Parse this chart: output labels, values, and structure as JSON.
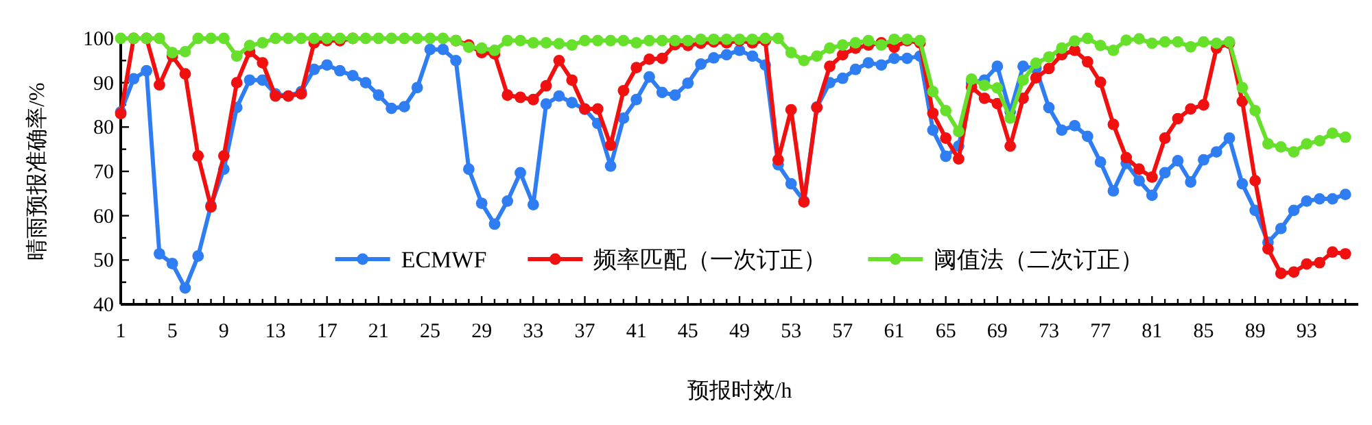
{
  "chart_data": {
    "type": "line",
    "xlabel": "预报时效/h",
    "ylabel": "晴雨预报准确率/%",
    "x": [
      1,
      2,
      3,
      4,
      5,
      6,
      7,
      8,
      9,
      10,
      11,
      12,
      13,
      14,
      15,
      16,
      17,
      18,
      19,
      20,
      21,
      22,
      23,
      24,
      25,
      26,
      27,
      28,
      29,
      30,
      31,
      32,
      33,
      34,
      35,
      36,
      37,
      38,
      39,
      40,
      41,
      42,
      43,
      44,
      45,
      46,
      47,
      48,
      49,
      50,
      51,
      52,
      53,
      54,
      55,
      56,
      57,
      58,
      59,
      60,
      61,
      62,
      63,
      64,
      65,
      66,
      67,
      68,
      69,
      70,
      71,
      72,
      73,
      74,
      75,
      76,
      77,
      78,
      79,
      80,
      81,
      82,
      83,
      84,
      85,
      86,
      87,
      88,
      89,
      90,
      91,
      92,
      93,
      94,
      95,
      96
    ],
    "series": [
      {
        "name": "ECMWF",
        "color": "#2f7df2",
        "values": [
          83.4,
          90.9,
          92.7,
          51.4,
          49.2,
          43.7,
          50.9,
          62.3,
          70.5,
          84.4,
          90.6,
          90.6,
          87.5,
          87,
          88,
          93,
          94,
          92.7,
          91.6,
          90,
          87.2,
          84.2,
          84.6,
          88.9,
          97.5,
          97.5,
          95,
          70.5,
          62.8,
          58.1,
          63.3,
          69.7,
          62.5,
          85.2,
          87,
          85.5,
          84,
          80.8,
          71.2,
          82,
          86.2,
          91.3,
          87.8,
          87.2,
          89.9,
          94.2,
          95.6,
          96.3,
          97.3,
          96,
          94,
          71.5,
          67.2,
          63.3,
          84.5,
          90,
          91,
          93,
          94.5,
          94,
          95.5,
          95.5,
          96,
          79.3,
          73.4,
          75.7,
          90,
          90.6,
          93.7,
          83.4,
          93.7,
          93.2,
          84.4,
          79.3,
          80.3,
          77.9,
          72.1,
          65.6,
          71.8,
          67.9,
          64.6,
          69.7,
          72.4,
          67.6,
          72.6,
          74.4,
          77.5,
          67.2,
          61.2,
          54,
          57.1,
          61.2,
          63.3,
          63.8,
          63.8,
          64.8
        ]
      },
      {
        "name": "频率匹配（一次订正）",
        "color": "#f01010",
        "values": [
          83,
          100,
          100,
          89.5,
          96,
          92,
          73.5,
          62,
          73.5,
          90,
          97,
          94.5,
          87,
          87,
          87.5,
          99,
          99.5,
          99.5,
          100,
          null,
          null,
          null,
          null,
          null,
          null,
          null,
          99.5,
          98.5,
          96.8,
          96.5,
          87.2,
          86.7,
          86.2,
          89.3,
          95,
          90.6,
          84.1,
          84.1,
          75.9,
          88.2,
          93.4,
          95.3,
          95.5,
          98.6,
          98.4,
          98.9,
          99.2,
          99,
          99.5,
          99,
          99.5,
          72.6,
          83.9,
          63.1,
          84.4,
          93.7,
          96.3,
          97.8,
          98.5,
          99,
          98,
          99.5,
          99,
          83.1,
          77.5,
          72.8,
          89,
          86.5,
          85.3,
          75.7,
          86.5,
          91.1,
          93.2,
          96.3,
          97.3,
          94.7,
          90.1,
          80.6,
          73.1,
          70.5,
          68.7,
          77.5,
          81.9,
          84.1,
          85,
          97.8,
          98.9,
          85.8,
          67.9,
          52.5,
          47,
          47.3,
          49.1,
          49.4,
          51.8,
          51.4
        ]
      },
      {
        "name": "阈值法（二次订正）",
        "color": "#66e02a",
        "values": [
          100,
          100,
          100,
          100,
          96.8,
          97,
          100,
          100,
          100,
          96,
          98.4,
          99,
          100,
          100,
          100,
          100,
          100,
          100,
          100,
          100,
          100,
          100,
          100,
          100,
          100,
          100,
          99.5,
          98,
          97.8,
          97.3,
          99.5,
          99.5,
          99,
          99,
          98.8,
          98.5,
          99.5,
          99.5,
          99.5,
          99.5,
          99,
          99.5,
          99.5,
          99.5,
          99.5,
          99.8,
          99.8,
          99.8,
          99.8,
          99.8,
          100,
          100,
          96.8,
          95,
          96,
          97.8,
          98.5,
          99,
          99.5,
          98.5,
          99.8,
          99.8,
          99.5,
          88,
          83.7,
          79,
          90.8,
          89.4,
          88.8,
          82,
          90.6,
          94.4,
          95.8,
          97.8,
          99.4,
          100,
          98.4,
          97.3,
          99.6,
          99.9,
          98.9,
          99.2,
          99.2,
          98.1,
          99.2,
          98.9,
          99.2,
          88.9,
          83.7,
          76.2,
          75.5,
          74.4,
          76.2,
          76.9,
          78.6,
          77.7
        ]
      }
    ],
    "xlim": [
      1,
      97
    ],
    "xticks": [
      1,
      {
        "value": 2,
        "label": null
      },
      {
        "value": 3,
        "label": null
      },
      {
        "value": 4,
        "label": null
      },
      5,
      {
        "value": 6,
        "label": null
      },
      {
        "value": 7,
        "label": null
      },
      {
        "value": 8,
        "label": null
      },
      9,
      {
        "value": 10,
        "label": null
      },
      {
        "value": 11,
        "label": null
      },
      {
        "value": 12,
        "label": null
      },
      13,
      {
        "value": 14,
        "label": null
      },
      {
        "value": 15,
        "label": null
      },
      {
        "value": 16,
        "label": null
      },
      17,
      {
        "value": 18,
        "label": null
      },
      {
        "value": 19,
        "label": null
      },
      {
        "value": 20,
        "label": null
      },
      21,
      {
        "value": 22,
        "label": null
      },
      {
        "value": 23,
        "label": null
      },
      {
        "value": 24,
        "label": null
      },
      25,
      {
        "value": 26,
        "label": null
      },
      {
        "value": 27,
        "label": null
      },
      {
        "value": 28,
        "label": null
      },
      29,
      {
        "value": 30,
        "label": null
      },
      {
        "value": 31,
        "label": null
      },
      {
        "value": 32,
        "label": null
      },
      33,
      {
        "value": 34,
        "label": null
      },
      {
        "value": 35,
        "label": null
      },
      {
        "value": 36,
        "label": null
      },
      37,
      {
        "value": 38,
        "label": null
      },
      {
        "value": 39,
        "label": null
      },
      {
        "value": 40,
        "label": null
      },
      41,
      {
        "value": 42,
        "label": null
      },
      {
        "value": 43,
        "label": null
      },
      {
        "value": 44,
        "label": null
      },
      45,
      {
        "value": 46,
        "label": null
      },
      {
        "value": 47,
        "label": null
      },
      {
        "value": 48,
        "label": null
      },
      49,
      {
        "value": 50,
        "label": null
      },
      {
        "value": 51,
        "label": null
      },
      {
        "value": 52,
        "label": null
      },
      53,
      {
        "value": 54,
        "label": null
      },
      {
        "value": 55,
        "label": null
      },
      {
        "value": 56,
        "label": null
      },
      57,
      {
        "value": 58,
        "label": null
      },
      {
        "value": 59,
        "label": null
      },
      {
        "value": 60,
        "label": null
      },
      61,
      {
        "value": 62,
        "label": null
      },
      {
        "value": 63,
        "label": null
      },
      {
        "value": 64,
        "label": null
      },
      65,
      {
        "value": 66,
        "label": null
      },
      {
        "value": 67,
        "label": null
      },
      {
        "value": 68,
        "label": null
      },
      69,
      {
        "value": 70,
        "label": null
      },
      {
        "value": 71,
        "label": null
      },
      {
        "value": 72,
        "label": null
      },
      73,
      {
        "value": 74,
        "label": null
      },
      {
        "value": 75,
        "label": null
      },
      {
        "value": 76,
        "label": null
      },
      77,
      {
        "value": 78,
        "label": null
      },
      {
        "value": 79,
        "label": null
      },
      {
        "value": 80,
        "label": null
      },
      81,
      {
        "value": 82,
        "label": null
      },
      {
        "value": 83,
        "label": null
      },
      {
        "value": 84,
        "label": null
      },
      85,
      {
        "value": 86,
        "label": null
      },
      {
        "value": 87,
        "label": null
      },
      {
        "value": 88,
        "label": null
      },
      89,
      {
        "value": 90,
        "label": null
      },
      {
        "value": 91,
        "label": null
      },
      {
        "value": 92,
        "label": null
      },
      93,
      {
        "value": 94,
        "label": null
      },
      {
        "value": 95,
        "label": null
      },
      {
        "value": 96,
        "label": null
      }
    ],
    "ylim": [
      40,
      100
    ],
    "yticks": [
      40,
      {
        "value": 45,
        "label": null
      },
      50,
      {
        "value": 55,
        "label": null
      },
      60,
      {
        "value": 65,
        "label": null
      },
      70,
      {
        "value": 75,
        "label": null
      },
      80,
      {
        "value": 85,
        "label": null
      },
      90,
      {
        "value": 95,
        "label": null
      },
      100
    ],
    "legend": "bottom",
    "marker": "circle",
    "line_style": "solid",
    "grid": false
  }
}
